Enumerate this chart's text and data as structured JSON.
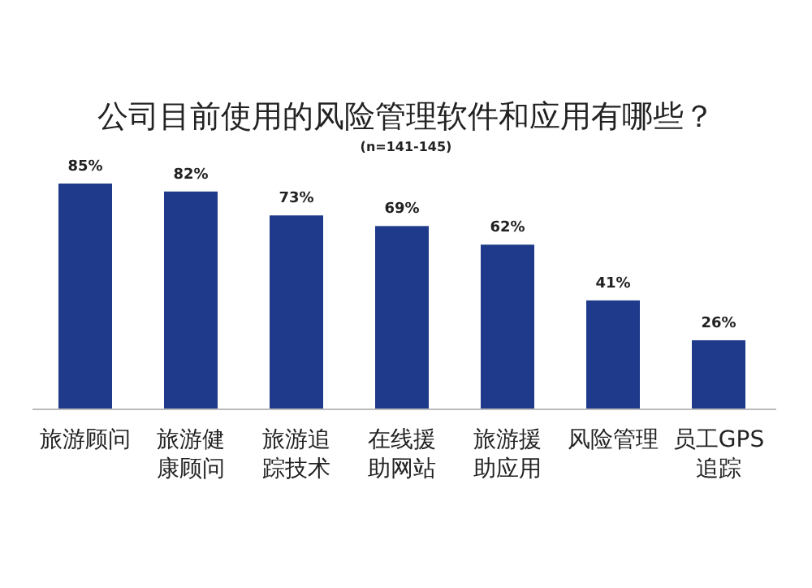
{
  "chart_data": {
    "type": "bar",
    "title": "公司目前使用的风险管理软件和应用有哪些？",
    "subtitle": "(n=141-145)",
    "categories": [
      "旅游顾问",
      "旅游健康顾问",
      "旅游追踪技术",
      "在线援助网站",
      "旅游援助应用",
      "风险管理",
      "员工GPS追踪"
    ],
    "values": [
      85,
      82,
      73,
      69,
      62,
      41,
      26
    ],
    "value_labels": [
      "85%",
      "82%",
      "73%",
      "69%",
      "62%",
      "41%",
      "26%"
    ],
    "color": "#1f3a8a"
  }
}
